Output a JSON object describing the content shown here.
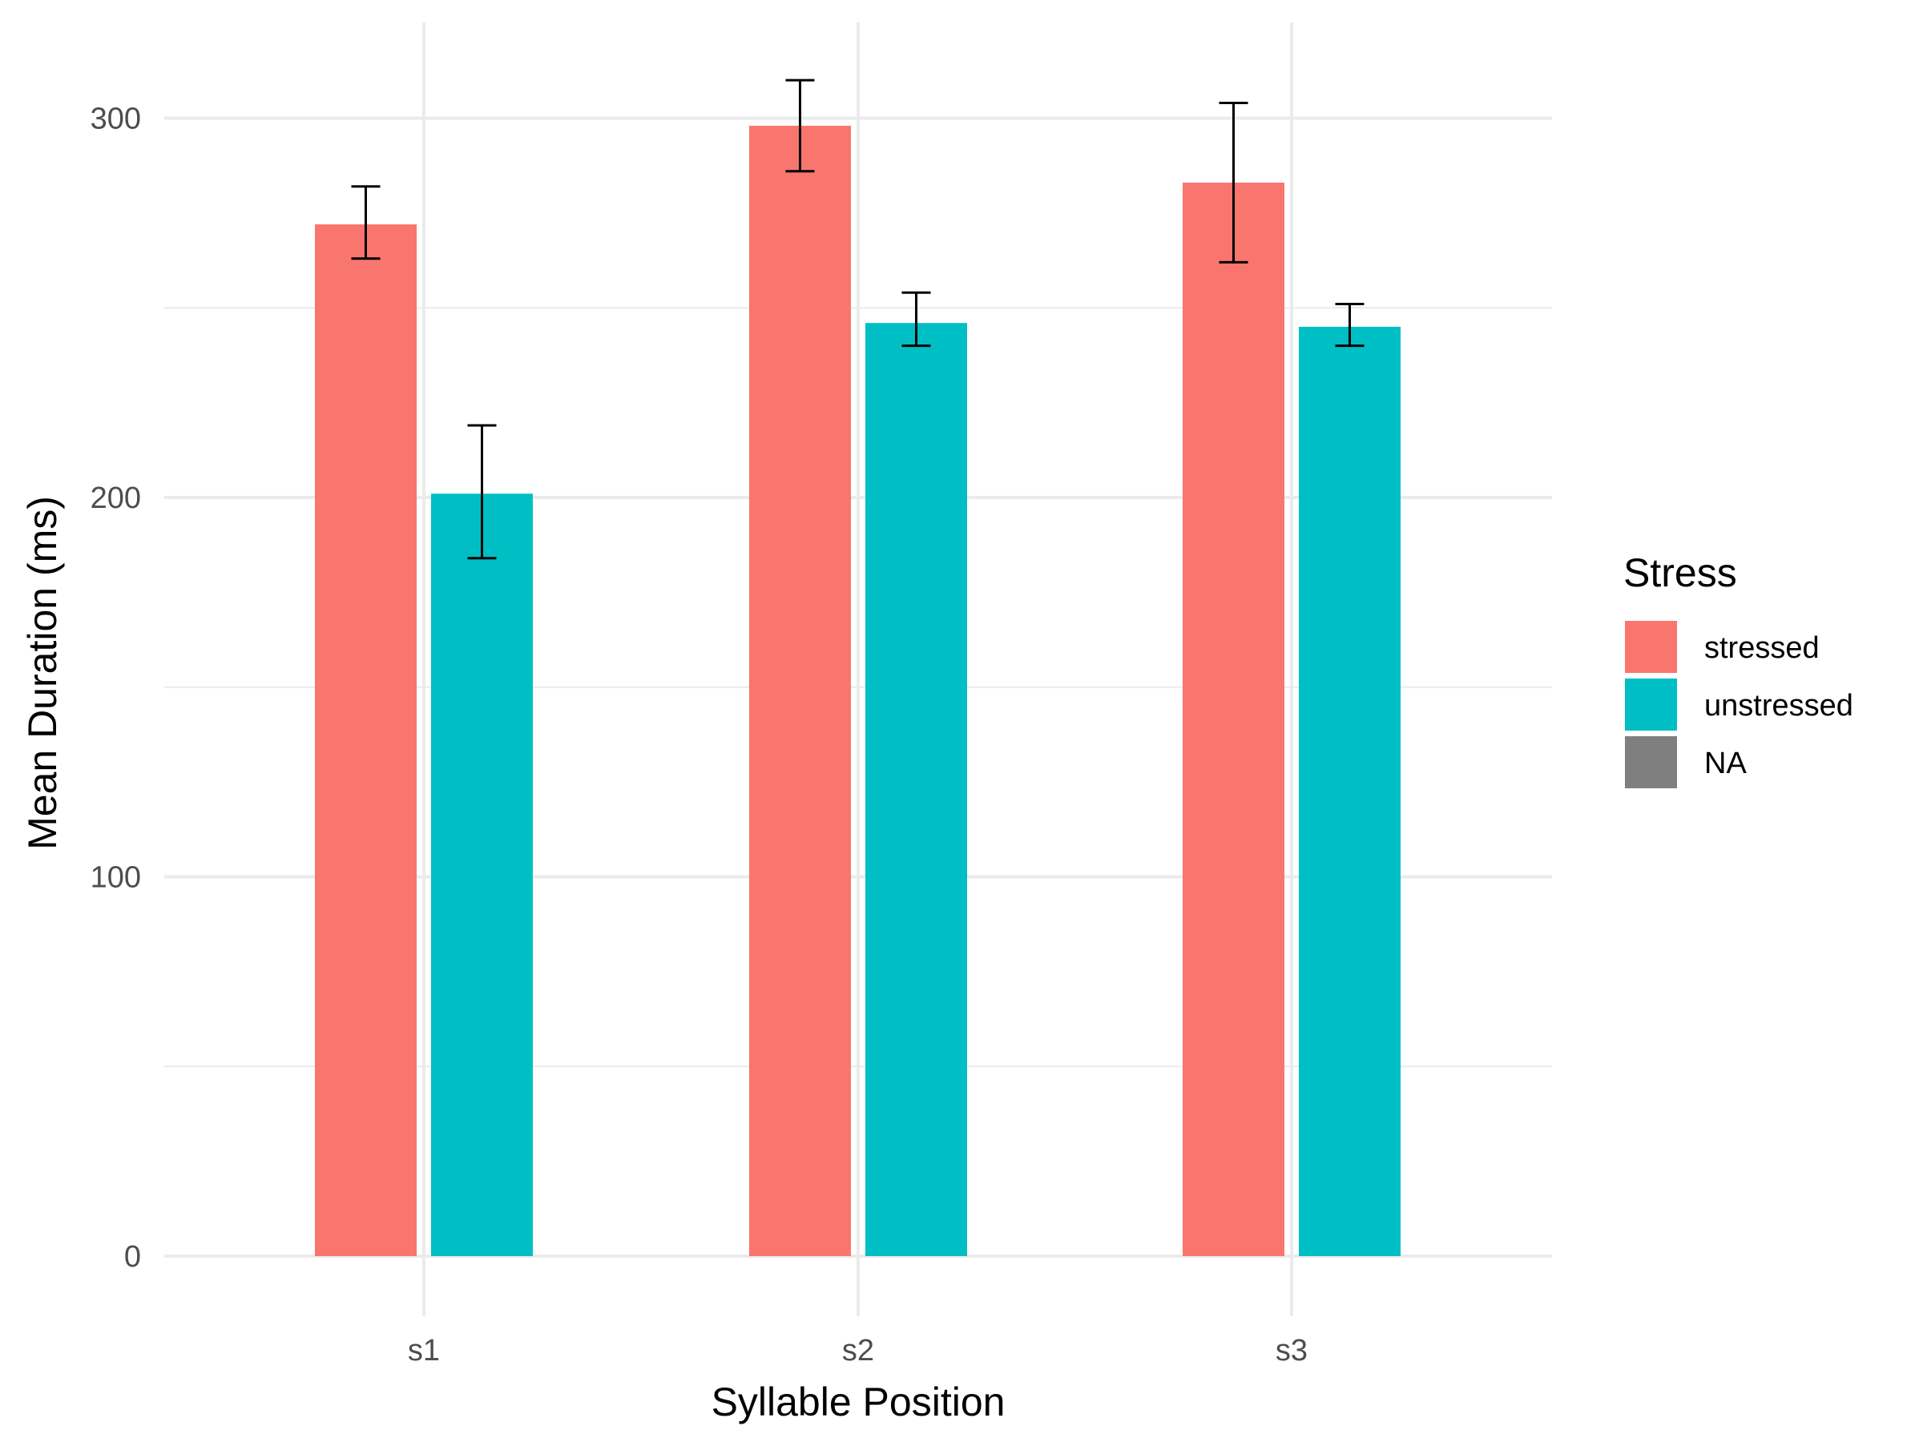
{
  "chart_data": {
    "type": "bar",
    "title": "",
    "xlabel": "Syllable Position",
    "ylabel": "Mean Duration (ms)",
    "categories": [
      "s1",
      "s2",
      "s3"
    ],
    "y_ticks": [
      "0",
      "100",
      "200",
      "300"
    ],
    "ylim": [
      0,
      325
    ],
    "grid": true,
    "legend": {
      "title": "Stress",
      "position": "right",
      "entries": [
        {
          "label": "stressed",
          "color": "#F8766D"
        },
        {
          "label": "unstressed",
          "color": "#00BFC4"
        },
        {
          "label": "NA",
          "color": "#7F7F7F"
        }
      ]
    },
    "series": [
      {
        "name": "stressed",
        "color": "#F8766D",
        "values": [
          272,
          298,
          283
        ],
        "error_low": [
          263,
          286,
          262
        ],
        "error_high": [
          282,
          310,
          304
        ]
      },
      {
        "name": "unstressed",
        "color": "#00BFC4",
        "values": [
          201,
          246,
          245
        ],
        "error_low": [
          184,
          240,
          240
        ],
        "error_high": [
          219,
          254,
          251
        ]
      }
    ]
  }
}
